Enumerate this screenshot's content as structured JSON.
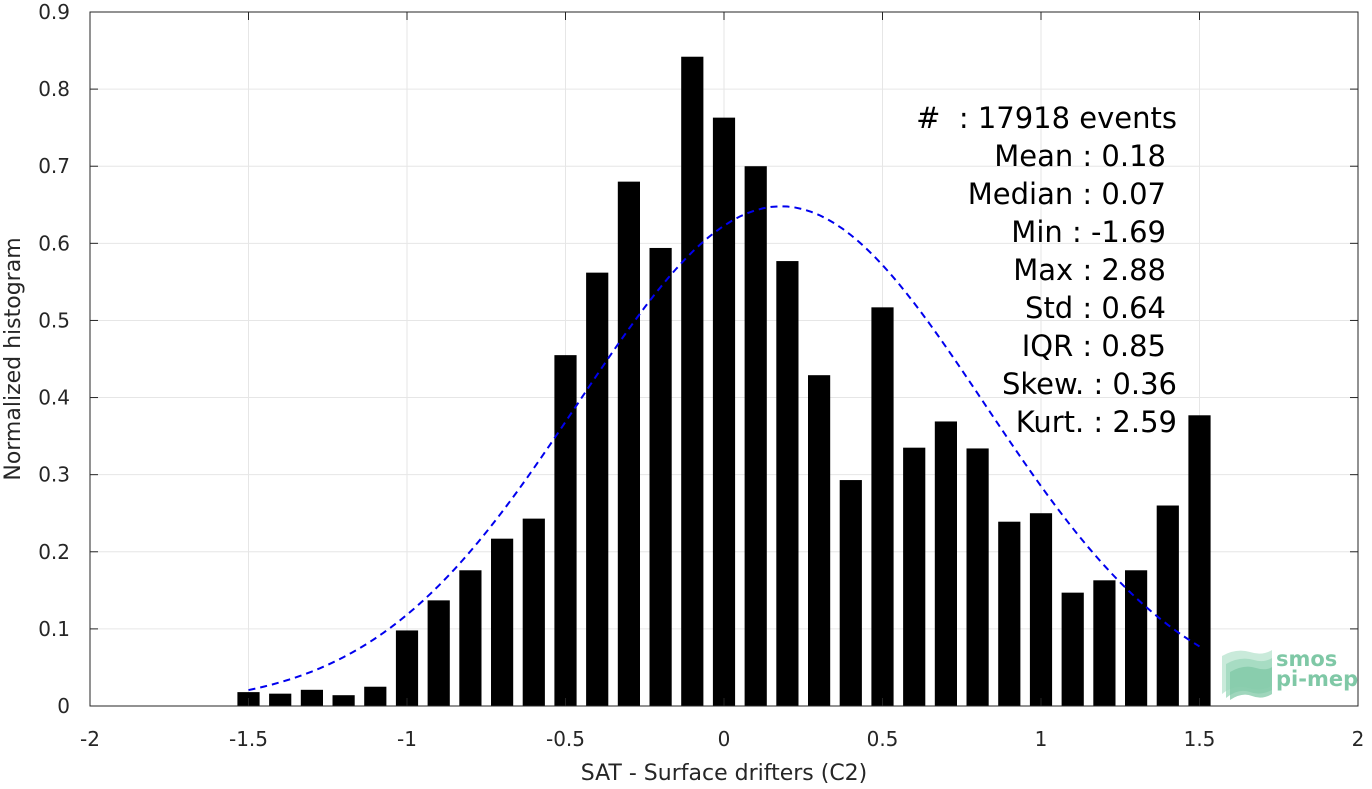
{
  "chart_data": {
    "type": "bar",
    "xlabel": "SAT - Surface drifters (C2)",
    "ylabel": "Normalized histogram",
    "xlim": [
      -2,
      2
    ],
    "ylim": [
      0,
      0.9
    ],
    "x_ticks": [
      -2,
      -1.5,
      -1,
      -0.5,
      0,
      0.5,
      1,
      1.5,
      2
    ],
    "x_tick_labels": [
      "-2",
      "-1.5",
      "-1",
      "-0.5",
      "0",
      "0.5",
      "1",
      "1.5",
      "2"
    ],
    "y_ticks": [
      0,
      0.1,
      0.2,
      0.3,
      0.4,
      0.5,
      0.6,
      0.7,
      0.8,
      0.9
    ],
    "y_tick_labels": [
      "0",
      "0.1",
      "0.2",
      "0.3",
      "0.4",
      "0.5",
      "0.6",
      "0.7",
      "0.8",
      "0.9"
    ],
    "grid": true,
    "bar_color": "#000000",
    "bar_width": 0.07,
    "bins": {
      "x": [
        -1.5,
        -1.4,
        -1.3,
        -1.2,
        -1.1,
        -1.0,
        -0.9,
        -0.8,
        -0.7,
        -0.6,
        -0.5,
        -0.4,
        -0.3,
        -0.2,
        -0.1,
        0.0,
        0.1,
        0.2,
        0.3,
        0.4,
        0.5,
        0.6,
        0.7,
        0.8,
        0.9,
        1.0,
        1.1,
        1.2,
        1.3,
        1.4,
        1.5
      ],
      "values": [
        0.018,
        0.016,
        0.021,
        0.014,
        0.025,
        0.098,
        0.137,
        0.176,
        0.217,
        0.243,
        0.455,
        0.562,
        0.68,
        0.594,
        0.842,
        0.763,
        0.7,
        0.577,
        0.429,
        0.293,
        0.517,
        0.335,
        0.369,
        0.334,
        0.239,
        0.25,
        0.147,
        0.163,
        0.176,
        0.26,
        0.377
      ]
    },
    "fit_curve": {
      "style": "dashed",
      "color": "#0000ee",
      "mean": 0.18,
      "std": 0.64,
      "peak": 0.648,
      "x_range": [
        -1.5,
        1.5
      ]
    },
    "stats": [
      {
        "label": "#  : 17918 events"
      },
      {
        "label": "Mean : 0.18"
      },
      {
        "label": "Median : 0.07"
      },
      {
        "label": "Min : -1.69"
      },
      {
        "label": "Max : 2.88"
      },
      {
        "label": "Std : 0.64"
      },
      {
        "label": "IQR : 0.85"
      },
      {
        "label": "Skew. : 0.36"
      },
      {
        "label": "Kurt. : 2.59"
      }
    ],
    "logo": {
      "line1": "smos",
      "line2": "pi-mep"
    }
  }
}
